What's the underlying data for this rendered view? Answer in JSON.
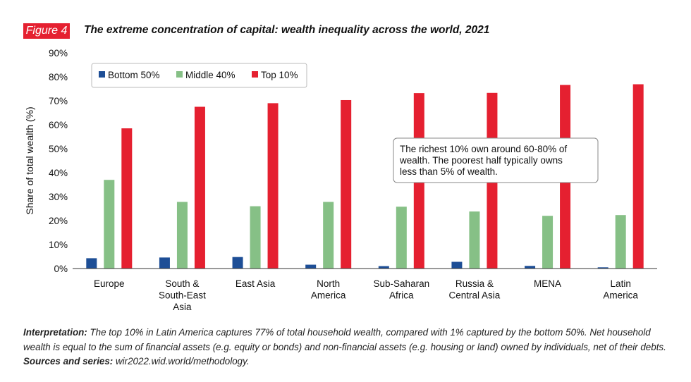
{
  "figure": {
    "label": "Figure 4",
    "title": "The extreme concentration of capital: wealth inequality across the world, 2021"
  },
  "annotation": {
    "lines": [
      "The richest 10% own around 60-80% of",
      "wealth. The poorest half typically owns",
      "less than 5% of wealth."
    ]
  },
  "note": {
    "interp_label": "Interpretation:",
    "interp_text": " The top 10% in Latin America captures 77% of total household wealth, compared with 1% captured by the bottom 50%. Net household wealth is equal to the sum of financial assets (e.g. equity or bonds) and non-financial assets (e.g. housing or land) owned by individuals, net of their debts. ",
    "sources_label": "Sources and series:",
    "sources_text": " wir2022.wid.world/methodology."
  },
  "chart_data": {
    "type": "bar",
    "ylabel": "Share of total wealth (%)",
    "ylim": [
      0,
      90
    ],
    "yticks": [
      "0%",
      "10%",
      "20%",
      "30%",
      "40%",
      "50%",
      "60%",
      "70%",
      "80%",
      "90%"
    ],
    "grid": false,
    "legend_position": "top-left",
    "categories": [
      [
        "Europe"
      ],
      [
        "South &",
        "South-East",
        "Asia"
      ],
      [
        "East Asia"
      ],
      [
        "North",
        "America"
      ],
      [
        "Sub-Saharan",
        "Africa"
      ],
      [
        "Russia &",
        "Central Asia"
      ],
      [
        "MENA"
      ],
      [
        "Latin",
        "America"
      ]
    ],
    "series": [
      {
        "name": "Bottom 50%",
        "color": "#1d4e96",
        "values": [
          4.3,
          4.6,
          4.8,
          1.6,
          1.0,
          2.8,
          1.1,
          0.5
        ]
      },
      {
        "name": "Middle 40%",
        "color": "#86c086",
        "values": [
          37.0,
          27.8,
          26.0,
          27.8,
          25.8,
          23.8,
          22.0,
          22.3
        ]
      },
      {
        "name": "Top 10%",
        "color": "#e52030",
        "values": [
          58.5,
          67.5,
          69.0,
          70.3,
          73.2,
          73.3,
          76.6,
          76.9
        ]
      }
    ]
  }
}
